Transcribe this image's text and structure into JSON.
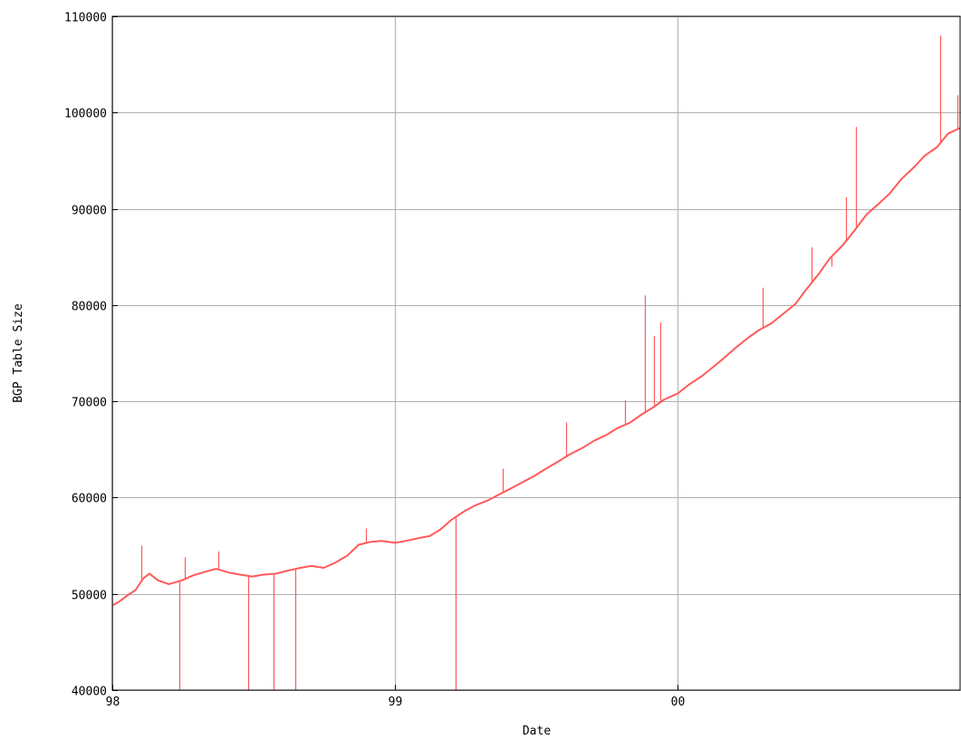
{
  "chart_data": {
    "type": "line",
    "title": "",
    "xlabel": "Date",
    "ylabel": "BGP Table Size",
    "grid": true,
    "colors": {
      "series": "#ff5a5a",
      "grid": "#b0b0b0",
      "axis": "#000000"
    },
    "xlim": [
      "1998-01-01",
      "2000-12-31"
    ],
    "ylim": [
      40000,
      110000
    ],
    "x_ticks": [
      {
        "value": "1998-01-01",
        "label": "98"
      },
      {
        "value": "1999-01-01",
        "label": "99"
      },
      {
        "value": "2000-01-01",
        "label": "00"
      }
    ],
    "y_ticks": [
      {
        "value": 40000,
        "label": "40000"
      },
      {
        "value": 50000,
        "label": "50000"
      },
      {
        "value": 60000,
        "label": "60000"
      },
      {
        "value": 70000,
        "label": "70000"
      },
      {
        "value": 80000,
        "label": "80000"
      },
      {
        "value": 90000,
        "label": "90000"
      },
      {
        "value": 100000,
        "label": "100000"
      },
      {
        "value": 110000,
        "label": "110000"
      }
    ],
    "series": [
      {
        "points": [
          [
            "1998-01-01",
            48800
          ],
          [
            "1998-01-10",
            49200
          ],
          [
            "1998-01-20",
            49800
          ],
          [
            "1998-01-31",
            50400
          ],
          [
            "1998-02-10",
            51600
          ],
          [
            "1998-02-18",
            52100
          ],
          [
            "1998-03-01",
            51400
          ],
          [
            "1998-03-15",
            51000
          ],
          [
            "1998-04-01",
            51400
          ],
          [
            "1998-04-15",
            51900
          ],
          [
            "1998-05-01",
            52300
          ],
          [
            "1998-05-15",
            52600
          ],
          [
            "1998-06-01",
            52200
          ],
          [
            "1998-06-15",
            52000
          ],
          [
            "1998-07-01",
            51800
          ],
          [
            "1998-07-15",
            52000
          ],
          [
            "1998-08-01",
            52100
          ],
          [
            "1998-08-15",
            52400
          ],
          [
            "1998-09-01",
            52700
          ],
          [
            "1998-09-15",
            52900
          ],
          [
            "1998-10-01",
            52700
          ],
          [
            "1998-10-15",
            53200
          ],
          [
            "1998-11-01",
            54000
          ],
          [
            "1998-11-15",
            55100
          ],
          [
            "1998-12-01",
            55400
          ],
          [
            "1998-12-15",
            55500
          ],
          [
            "1999-01-01",
            55300
          ],
          [
            "1999-01-15",
            55500
          ],
          [
            "1999-02-01",
            55800
          ],
          [
            "1999-02-15",
            56000
          ],
          [
            "1999-03-01",
            56700
          ],
          [
            "1999-03-15",
            57700
          ],
          [
            "1999-04-01",
            58600
          ],
          [
            "1999-04-15",
            59200
          ],
          [
            "1999-05-01",
            59700
          ],
          [
            "1999-05-15",
            60300
          ],
          [
            "1999-06-01",
            61000
          ],
          [
            "1999-06-15",
            61600
          ],
          [
            "1999-07-01",
            62300
          ],
          [
            "1999-07-15",
            63000
          ],
          [
            "1999-08-01",
            63800
          ],
          [
            "1999-08-15",
            64500
          ],
          [
            "1999-09-01",
            65200
          ],
          [
            "1999-09-15",
            65900
          ],
          [
            "1999-10-01",
            66500
          ],
          [
            "1999-10-15",
            67200
          ],
          [
            "1999-11-01",
            67800
          ],
          [
            "1999-11-15",
            68600
          ],
          [
            "1999-12-01",
            69400
          ],
          [
            "1999-12-15",
            70200
          ],
          [
            "2000-01-01",
            70800
          ],
          [
            "2000-01-15",
            71700
          ],
          [
            "2000-02-01",
            72600
          ],
          [
            "2000-02-15",
            73500
          ],
          [
            "2000-03-01",
            74500
          ],
          [
            "2000-03-15",
            75500
          ],
          [
            "2000-04-01",
            76600
          ],
          [
            "2000-04-15",
            77400
          ],
          [
            "2000-05-01",
            78100
          ],
          [
            "2000-05-15",
            79000
          ],
          [
            "2000-06-01",
            80100
          ],
          [
            "2000-06-15",
            81600
          ],
          [
            "2000-07-01",
            83200
          ],
          [
            "2000-07-15",
            84800
          ],
          [
            "2000-08-01",
            86200
          ],
          [
            "2000-08-15",
            87600
          ],
          [
            "2000-09-01",
            89400
          ],
          [
            "2000-09-15",
            90400
          ],
          [
            "2000-10-01",
            91600
          ],
          [
            "2000-10-15",
            93000
          ],
          [
            "2000-11-01",
            94300
          ],
          [
            "2000-11-15",
            95500
          ],
          [
            "2000-12-01",
            96400
          ],
          [
            "2000-12-15",
            97800
          ],
          [
            "2000-12-31",
            98400
          ]
        ],
        "spikes": [
          [
            "1998-03-28",
            40000
          ],
          [
            "1998-06-25",
            40000
          ],
          [
            "1998-07-28",
            40000
          ],
          [
            "1998-08-25",
            40000
          ],
          [
            "1999-03-20",
            40000
          ],
          [
            "1998-02-08",
            55000
          ],
          [
            "1998-04-05",
            53800
          ],
          [
            "1998-05-18",
            54400
          ],
          [
            "1998-11-25",
            56800
          ],
          [
            "1999-05-20",
            63000
          ],
          [
            "1999-08-10",
            67800
          ],
          [
            "1999-10-25",
            70100
          ],
          [
            "1999-11-20",
            81000
          ],
          [
            "1999-12-01",
            76800
          ],
          [
            "1999-12-10",
            78200
          ],
          [
            "2000-04-20",
            81800
          ],
          [
            "2000-06-22",
            86000
          ],
          [
            "2000-07-18",
            84000
          ],
          [
            "2000-08-05",
            91200
          ],
          [
            "2000-08-18",
            98500
          ],
          [
            "2000-12-05",
            108000
          ],
          [
            "2000-12-27",
            101800
          ]
        ]
      }
    ]
  }
}
